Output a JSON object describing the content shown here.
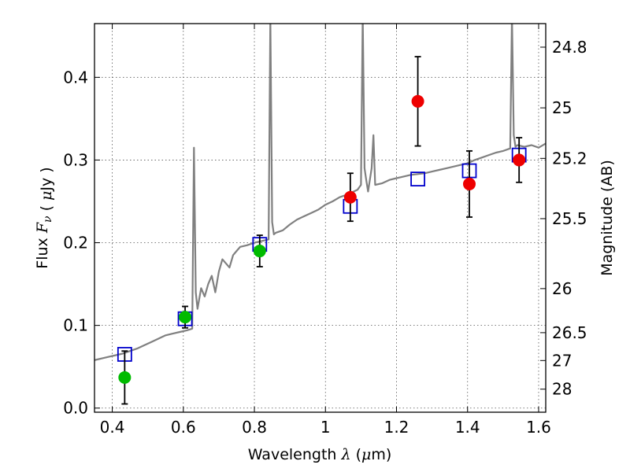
{
  "chart_data": {
    "type": "scatter",
    "title": "",
    "xlabel": "Wavelength  λ (μm)",
    "ylabel": "Flux  F_ν  ( μJy )",
    "y2label": "Magnitude (AB)",
    "xlim": [
      0.35,
      1.62
    ],
    "ylim": [
      -0.005,
      0.465
    ],
    "grid": true,
    "xticks": [
      0.4,
      0.6,
      0.8,
      1.0,
      1.2,
      1.4,
      1.6
    ],
    "xtick_labels": [
      "0.4",
      "0.6",
      "0.8",
      "1",
      "1.2",
      "1.4",
      "1.6"
    ],
    "yticks": [
      0.0,
      0.1,
      0.2,
      0.3,
      0.4
    ],
    "ytick_labels": [
      "0.0",
      "0.1",
      "0.2",
      "0.3",
      "0.4"
    ],
    "y2ticks": [
      {
        "label": "24.8",
        "flux": 0.4365
      },
      {
        "label": "25",
        "flux": 0.3631
      },
      {
        "label": "25.2",
        "flux": 0.302
      },
      {
        "label": "25.5",
        "flux": 0.2291
      },
      {
        "label": "26",
        "flux": 0.1445
      },
      {
        "label": "26.5",
        "flux": 0.0912
      },
      {
        "label": "27",
        "flux": 0.0575
      },
      {
        "label": "28",
        "flux": 0.0229
      }
    ],
    "colors": {
      "spectrum": "#808080",
      "model_box": "#0000cc",
      "green": "#00bb00",
      "red": "#ee0000",
      "errorbar": "#000000",
      "grid": "#555555"
    },
    "series": [
      {
        "marker": "line",
        "color": "#808080",
        "x": [
          0.35,
          0.37,
          0.39,
          0.41,
          0.43,
          0.45,
          0.47,
          0.49,
          0.51,
          0.53,
          0.55,
          0.57,
          0.59,
          0.61,
          0.625,
          0.63,
          0.635,
          0.64,
          0.65,
          0.66,
          0.67,
          0.68,
          0.69,
          0.7,
          0.71,
          0.72,
          0.73,
          0.74,
          0.75,
          0.76,
          0.78,
          0.8,
          0.82,
          0.84,
          0.845,
          0.85,
          0.855,
          0.86,
          0.88,
          0.9,
          0.92,
          0.94,
          0.96,
          0.98,
          1.0,
          1.02,
          1.04,
          1.06,
          1.08,
          1.09,
          1.1,
          1.105,
          1.11,
          1.115,
          1.12,
          1.13,
          1.135,
          1.14,
          1.16,
          1.18,
          1.2,
          1.22,
          1.24,
          1.26,
          1.28,
          1.3,
          1.32,
          1.34,
          1.36,
          1.38,
          1.4,
          1.42,
          1.44,
          1.46,
          1.48,
          1.5,
          1.52,
          1.525,
          1.53,
          1.535,
          1.54,
          1.56,
          1.58,
          1.6,
          1.62
        ],
        "values": [
          0.058,
          0.06,
          0.062,
          0.064,
          0.066,
          0.069,
          0.072,
          0.076,
          0.08,
          0.084,
          0.088,
          0.09,
          0.092,
          0.094,
          0.096,
          0.315,
          0.14,
          0.12,
          0.145,
          0.135,
          0.15,
          0.16,
          0.14,
          0.165,
          0.18,
          0.175,
          0.17,
          0.185,
          0.19,
          0.195,
          0.197,
          0.2,
          0.202,
          0.204,
          0.475,
          0.225,
          0.21,
          0.212,
          0.215,
          0.222,
          0.228,
          0.232,
          0.236,
          0.24,
          0.246,
          0.25,
          0.255,
          0.258,
          0.262,
          0.264,
          0.27,
          0.475,
          0.29,
          0.275,
          0.262,
          0.29,
          0.33,
          0.27,
          0.272,
          0.276,
          0.278,
          0.28,
          0.282,
          0.283,
          0.284,
          0.286,
          0.288,
          0.29,
          0.292,
          0.294,
          0.296,
          0.3,
          0.303,
          0.306,
          0.309,
          0.311,
          0.314,
          0.475,
          0.33,
          0.316,
          0.318,
          0.316,
          0.318,
          0.315,
          0.32
        ]
      },
      {
        "marker": "open-square",
        "color": "#0000cc",
        "x": [
          0.435,
          0.605,
          0.815,
          1.07,
          1.26,
          1.405,
          1.545
        ],
        "values": [
          0.065,
          0.108,
          0.198,
          0.244,
          0.277,
          0.287,
          0.306
        ]
      },
      {
        "marker": "filled-circle",
        "color": "#00bb00",
        "x": [
          0.435,
          0.605,
          0.815
        ],
        "values": [
          0.037,
          0.11,
          0.19
        ],
        "err": [
          0.032,
          0.013,
          0.019
        ]
      },
      {
        "marker": "filled-circle",
        "color": "#ee0000",
        "x": [
          1.07,
          1.26,
          1.405,
          1.545
        ],
        "values": [
          0.255,
          0.371,
          0.271,
          0.3
        ],
        "err": [
          0.029,
          0.054,
          0.04,
          0.027
        ]
      }
    ]
  }
}
